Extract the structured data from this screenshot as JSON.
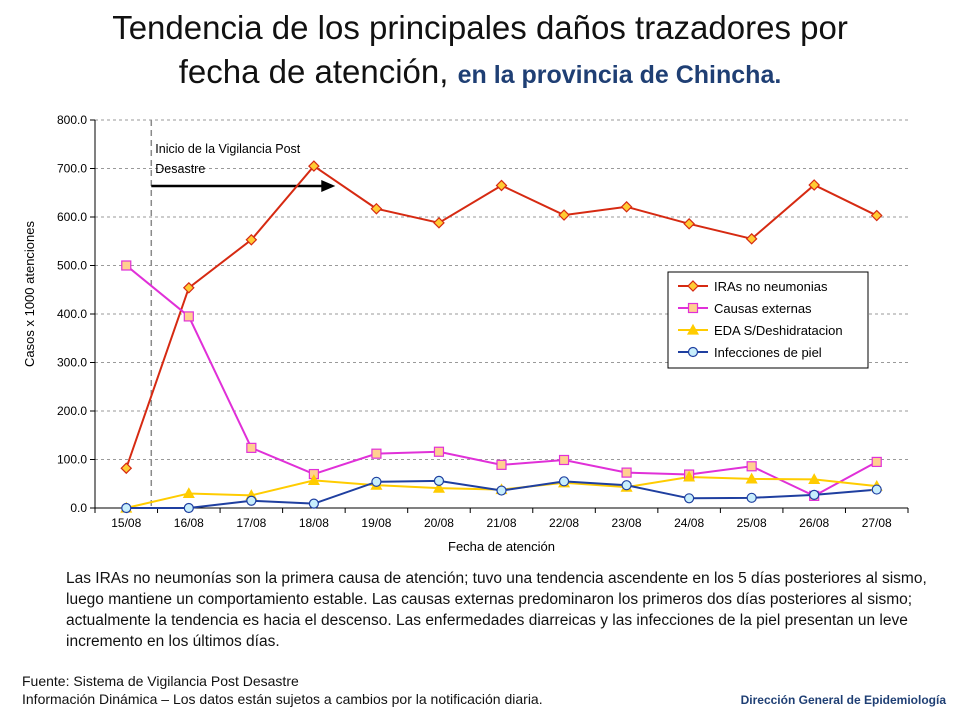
{
  "title": {
    "main_line1": "Tendencia de los principales daños trazadores por",
    "main_line2": "fecha de atención,",
    "highlight": "en la provincia de Chincha."
  },
  "chart_data": {
    "type": "line",
    "categories": [
      "15/08",
      "16/08",
      "17/08",
      "18/08",
      "19/08",
      "20/08",
      "21/08",
      "22/08",
      "23/08",
      "24/08",
      "25/08",
      "26/08",
      "27/08"
    ],
    "ylim": [
      0,
      800
    ],
    "yticks": [
      "0.0",
      "100.0",
      "200.0",
      "300.0",
      "400.0",
      "500.0",
      "600.0",
      "700.0",
      "800.0"
    ],
    "ylabel": "Casos x 1000  atenciones",
    "xlabel": "Fecha de atención",
    "grid": true,
    "legend_position": "right",
    "annotation": {
      "line1": "Inicio de la Vigilancia Post",
      "line2": "Desastre",
      "marker_category_index": 0.4
    },
    "series": [
      {
        "name": "IRAs no neumonias",
        "color": "#d62a12",
        "marker": "diamond",
        "marker_fill": "#ffcc33",
        "values": [
          82,
          454,
          553,
          705,
          617,
          588,
          665,
          604,
          621,
          586,
          555,
          666,
          603
        ]
      },
      {
        "name": "Causas externas",
        "color": "#e030d8",
        "marker": "square",
        "marker_fill": "#ffd090",
        "values": [
          500,
          395,
          124,
          70,
          112,
          116,
          89,
          99,
          73,
          69,
          86,
          25,
          95
        ]
      },
      {
        "name": "EDA S/Deshidratacion",
        "color": "#ffcc00",
        "marker": "triangle",
        "marker_fill": "#ffcc00",
        "values": [
          0,
          30,
          26,
          57,
          47,
          41,
          38,
          52,
          43,
          64,
          60,
          59,
          45
        ]
      },
      {
        "name": "Infecciones de piel",
        "color": "#1f3fa0",
        "marker": "circle",
        "marker_fill": "#c8eefc",
        "values": [
          0,
          0,
          15,
          9,
          54,
          56,
          36,
          55,
          47,
          20,
          21,
          27,
          38
        ]
      }
    ]
  },
  "paragraph": "Las IRAs no neumonías son la primera causa de atención; tuvo una tendencia ascendente en los 5 días posteriores al sismo, luego mantiene un comportamiento estable. Las causas externas predominaron los primeros dos días posteriores al sismo; actualmente la tendencia es hacia el descenso. Las enfermedades diarreicas y las infecciones de la piel presentan un leve incremento en los últimos días.",
  "source": {
    "line1": "Fuente: Sistema de Vigilancia Post Desastre",
    "line2": "Información Dinámica – Los datos están sujetos a cambios por la notificación diaria."
  },
  "brand": "Dirección General de Epidemiología"
}
